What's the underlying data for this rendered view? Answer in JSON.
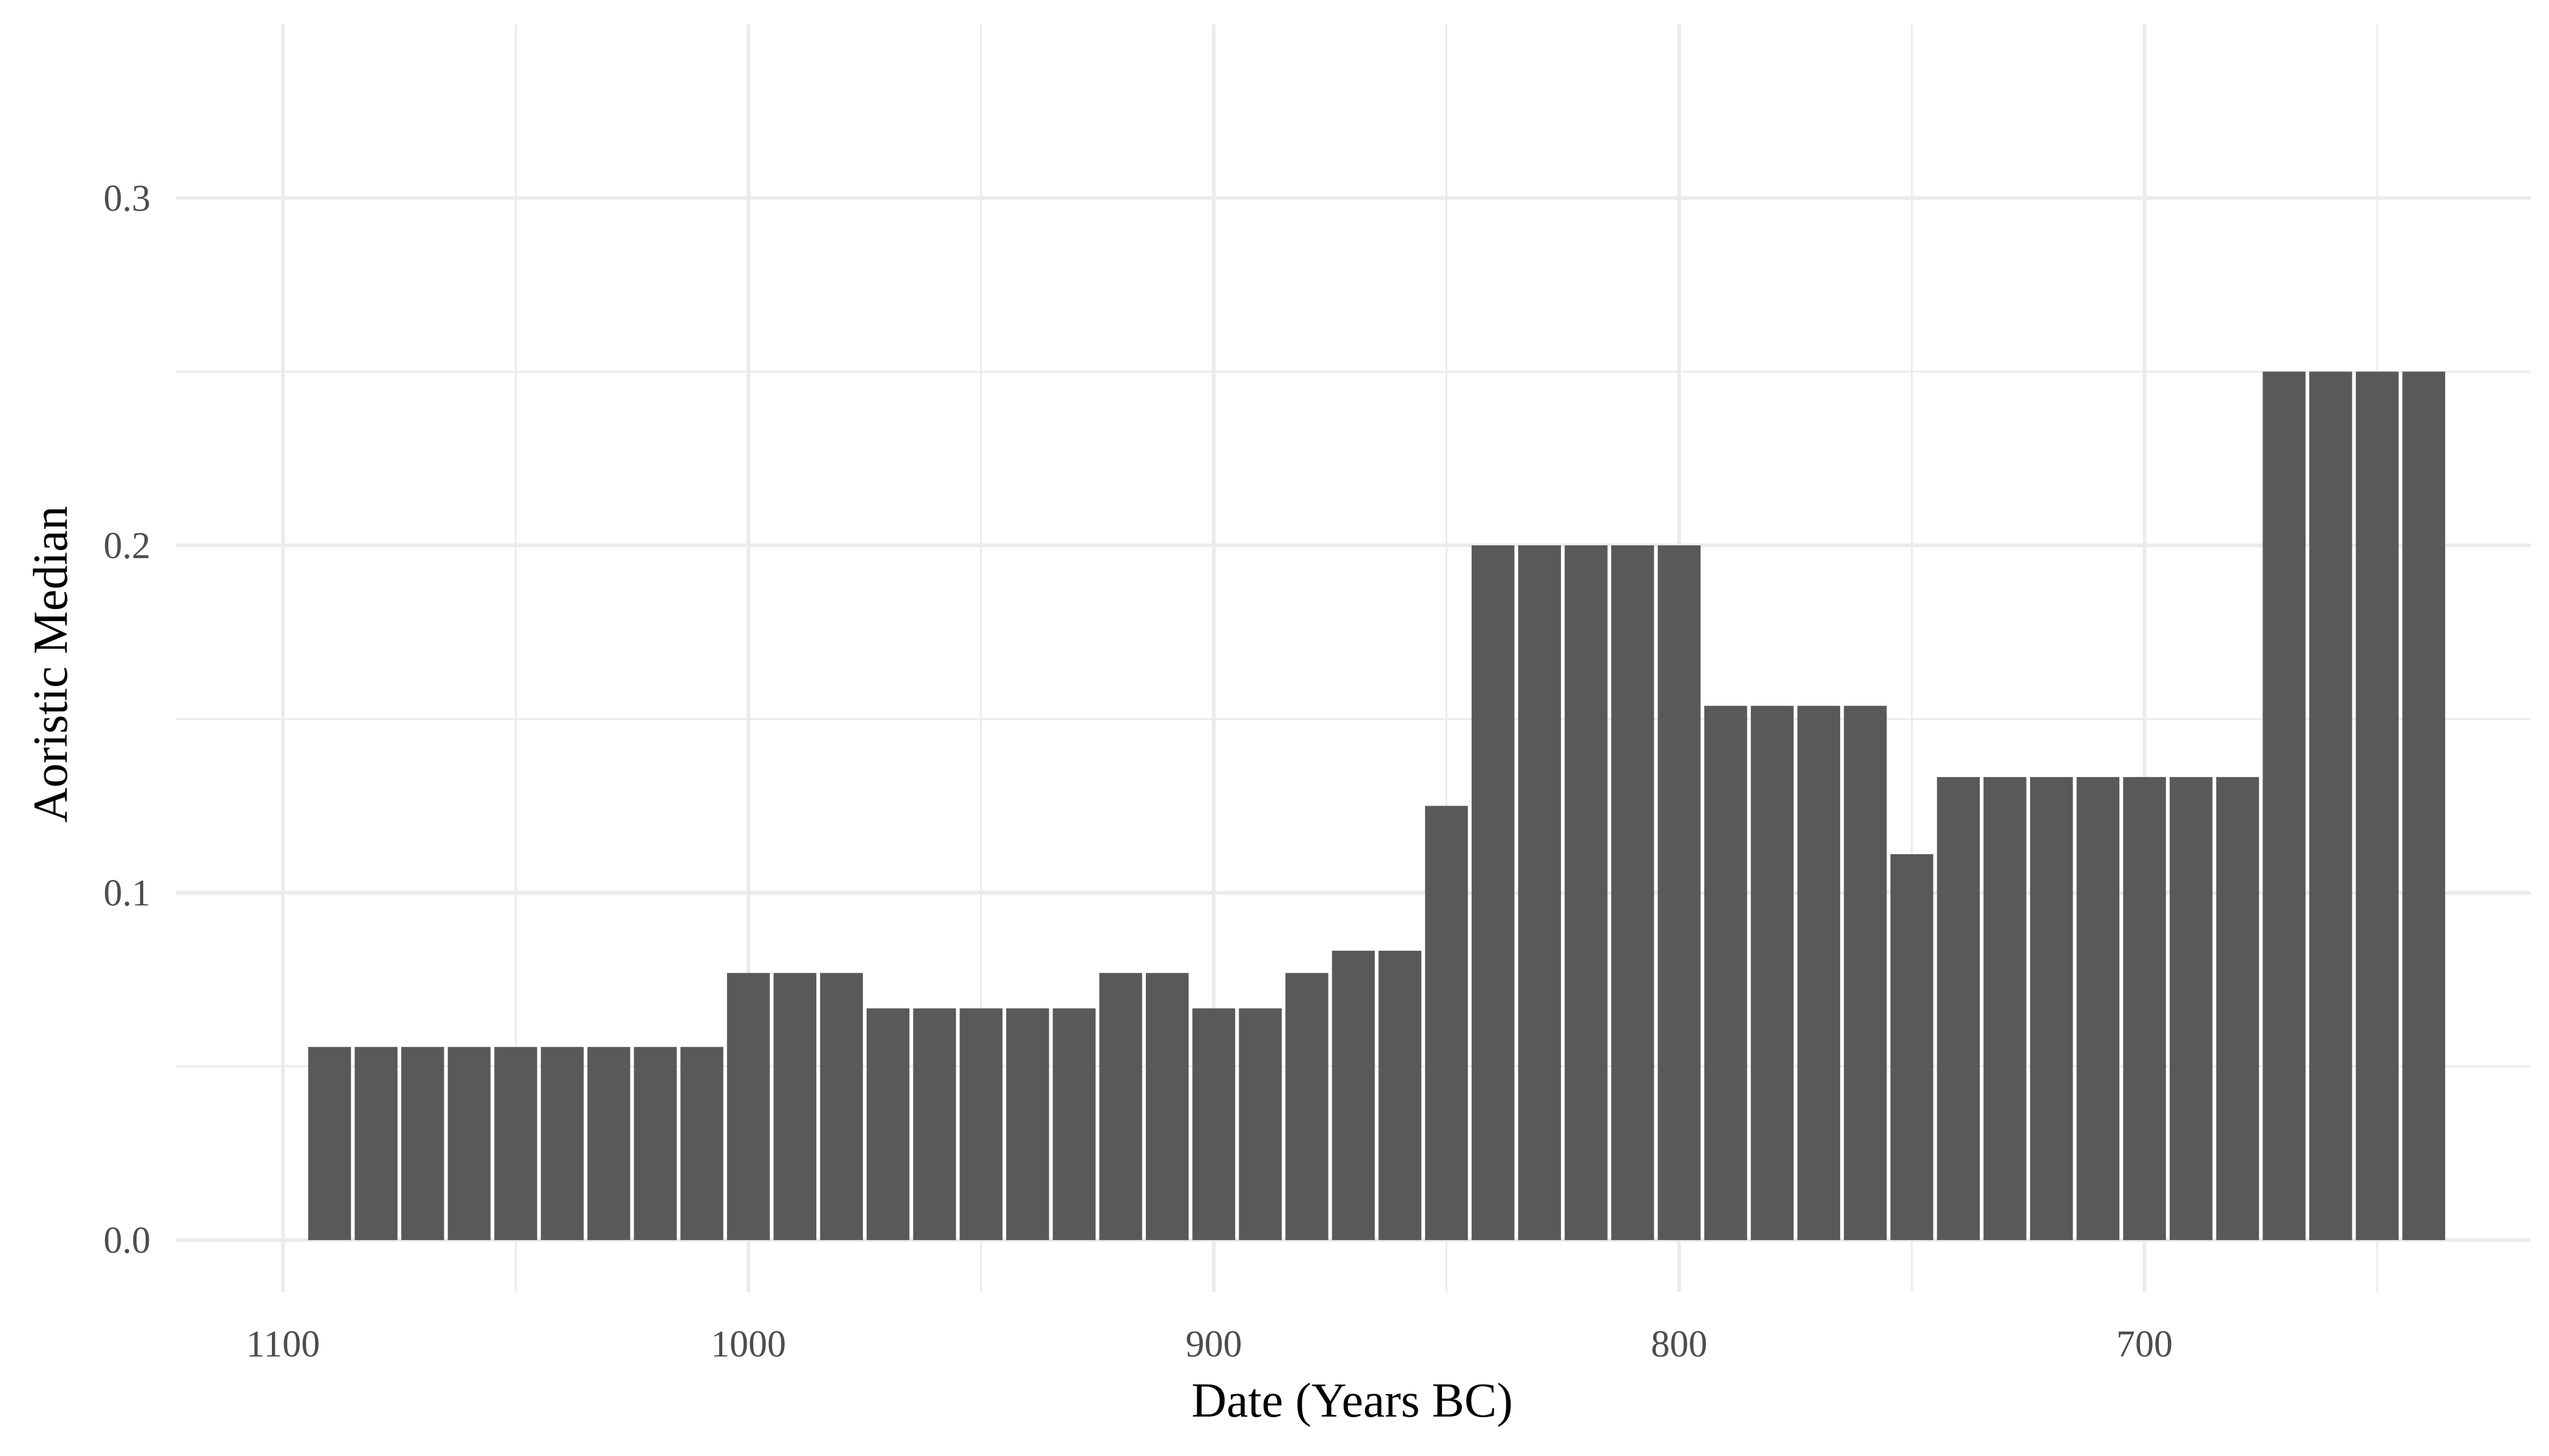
{
  "chart_data": {
    "type": "bar",
    "title": "",
    "xlabel": "Date (Years BC)",
    "ylabel": "Aoristic Median",
    "x_reversed": true,
    "xlim": [
      1123,
      617
    ],
    "ylim": [
      -0.015,
      0.35
    ],
    "bin_width": 10,
    "x": [
      1090,
      1080,
      1070,
      1060,
      1050,
      1040,
      1030,
      1020,
      1010,
      1000,
      990,
      980,
      970,
      960,
      950,
      940,
      930,
      920,
      910,
      900,
      890,
      880,
      870,
      860,
      850,
      840,
      830,
      820,
      810,
      800,
      790,
      780,
      770,
      760,
      750,
      740,
      730,
      720,
      710,
      700,
      690,
      680,
      670,
      660,
      650,
      640
    ],
    "values": [
      0.0556,
      0.0556,
      0.0556,
      0.0556,
      0.0556,
      0.0556,
      0.0556,
      0.0556,
      0.0556,
      0.0769,
      0.0769,
      0.0769,
      0.0667,
      0.0667,
      0.0667,
      0.0667,
      0.0667,
      0.0769,
      0.0769,
      0.0667,
      0.0667,
      0.0769,
      0.0833,
      0.0833,
      0.125,
      0.2,
      0.2,
      0.2,
      0.2,
      0.2,
      0.1538,
      0.1538,
      0.1538,
      0.1538,
      0.1111,
      0.1333,
      0.1333,
      0.1333,
      0.1333,
      0.1333,
      0.1333,
      0.1333,
      0.25,
      0.25,
      0.25,
      0.25
    ],
    "x_ticks": [
      1100,
      1000,
      900,
      800,
      700
    ],
    "x_tick_labels": [
      "1100",
      "1000",
      "900",
      "800",
      "700"
    ],
    "x_minor_ticks": [
      1050,
      950,
      850,
      750,
      650
    ],
    "y_ticks": [
      0.0,
      0.1,
      0.2,
      0.3
    ],
    "y_tick_labels": [
      "0.0",
      "0.1",
      "0.2",
      "0.3"
    ],
    "y_minor_ticks": [
      0.05,
      0.15,
      0.25
    ],
    "grid": true,
    "bar_color": "#595959",
    "grid_color": "#ebebeb",
    "background": "#ffffff"
  }
}
